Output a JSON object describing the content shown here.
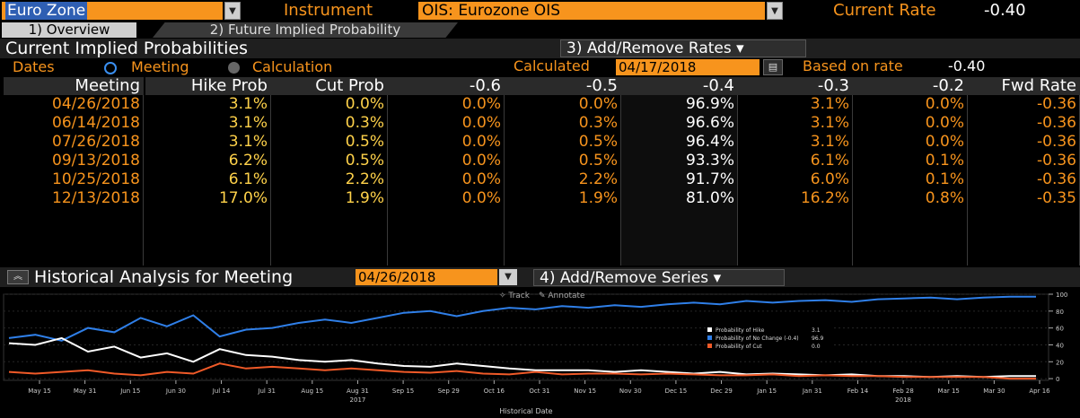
{
  "topbar": {
    "region": "Euro Zone",
    "instrument_label": "Instrument",
    "instrument": "OIS: Eurozone OIS",
    "current_rate_label": "Current Rate",
    "current_rate": "-0.40"
  },
  "tabs": [
    {
      "label": "1) Overview"
    },
    {
      "label": "2) Future Implied Probability"
    }
  ],
  "section1": {
    "title": "Current Implied Probabilities",
    "add_remove_rates": "3) Add/Remove Rates ▾",
    "dates_label": "Dates",
    "meeting_option": "Meeting",
    "calculation_option": "Calculation",
    "calculated_label": "Calculated",
    "calculated_date": "04/17/2018",
    "based_on_label": "Based on rate",
    "based_on_value": "-0.40"
  },
  "table": {
    "headers": [
      "Meeting",
      "Hike Prob",
      "Cut Prob",
      "-0.6",
      "-0.5",
      "-0.4",
      "-0.3",
      "-0.2",
      "Fwd Rate"
    ],
    "rows": [
      [
        "04/26/2018",
        "3.1%",
        "0.0%",
        "0.0%",
        "0.0%",
        "96.9%",
        "3.1%",
        "0.0%",
        "-0.36"
      ],
      [
        "06/14/2018",
        "3.1%",
        "0.3%",
        "0.0%",
        "0.3%",
        "96.6%",
        "3.1%",
        "0.0%",
        "-0.36"
      ],
      [
        "07/26/2018",
        "3.1%",
        "0.5%",
        "0.0%",
        "0.5%",
        "96.4%",
        "3.1%",
        "0.0%",
        "-0.36"
      ],
      [
        "09/13/2018",
        "6.2%",
        "0.5%",
        "0.0%",
        "0.5%",
        "93.3%",
        "6.1%",
        "0.1%",
        "-0.36"
      ],
      [
        "10/25/2018",
        "6.1%",
        "2.2%",
        "0.0%",
        "2.2%",
        "91.7%",
        "6.0%",
        "0.1%",
        "-0.36"
      ],
      [
        "12/13/2018",
        "17.0%",
        "1.9%",
        "0.0%",
        "1.9%",
        "81.0%",
        "16.2%",
        "0.8%",
        "-0.35"
      ]
    ]
  },
  "section2": {
    "title": "Historical Analysis for Meeting",
    "meeting_date": "04/26/2018",
    "add_remove_series": "4) Add/Remove Series ▾",
    "track_label": "Track",
    "annotate_label": "Annotate"
  },
  "chart_data": {
    "type": "line",
    "xlabel": "Historical Date",
    "x_ticks": [
      "May 15",
      "May 31",
      "Jun 15",
      "Jun 30",
      "Jul 14",
      "Jul 31",
      "Aug 15",
      "Aug 31",
      "Sep 15",
      "Sep 29",
      "Oct 16",
      "Oct 31",
      "Nov 15",
      "Nov 30",
      "Dec 15",
      "Dec 29",
      "Jan 15",
      "Jan 31",
      "Feb 14",
      "Feb 28",
      "Mar 15",
      "Mar 30",
      "Apr 16"
    ],
    "year_labels": [
      "2017",
      "2018"
    ],
    "y_ticks": [
      0,
      20,
      40,
      60,
      80,
      100
    ],
    "ylim": [
      -2,
      100
    ],
    "legend": [
      {
        "name": "Probability of Hike",
        "value": "3.1",
        "color": "#ffffff"
      },
      {
        "name": "Probability of No Change (-0.4)",
        "value": "96.9",
        "color": "#2f7fe8"
      },
      {
        "name": "Probability of Cut",
        "value": "0.0",
        "color": "#f05a28"
      }
    ],
    "series": [
      {
        "name": "Probability of No Change (-0.4)",
        "color": "#2f7fe8",
        "values": [
          48,
          52,
          45,
          60,
          55,
          72,
          62,
          75,
          50,
          58,
          60,
          66,
          70,
          66,
          72,
          78,
          80,
          74,
          80,
          84,
          82,
          86,
          84,
          87,
          85,
          88,
          90,
          88,
          92,
          90,
          92,
          93,
          91,
          94,
          95,
          96,
          94,
          96,
          97,
          97
        ]
      },
      {
        "name": "Probability of Hike",
        "color": "#ffffff",
        "values": [
          42,
          40,
          48,
          32,
          38,
          25,
          30,
          20,
          35,
          28,
          26,
          22,
          20,
          22,
          18,
          15,
          14,
          18,
          15,
          12,
          10,
          10,
          10,
          8,
          10,
          8,
          6,
          8,
          5,
          6,
          5,
          4,
          5,
          3,
          3,
          2,
          3,
          2,
          3,
          3
        ]
      },
      {
        "name": "Probability of Cut",
        "color": "#f05a28",
        "values": [
          8,
          6,
          8,
          10,
          6,
          4,
          8,
          6,
          18,
          12,
          14,
          12,
          10,
          12,
          10,
          8,
          7,
          9,
          6,
          5,
          8,
          5,
          6,
          6,
          5,
          6,
          5,
          4,
          4,
          5,
          3,
          4,
          3,
          3,
          2,
          2,
          2,
          2,
          0,
          0
        ]
      }
    ]
  }
}
